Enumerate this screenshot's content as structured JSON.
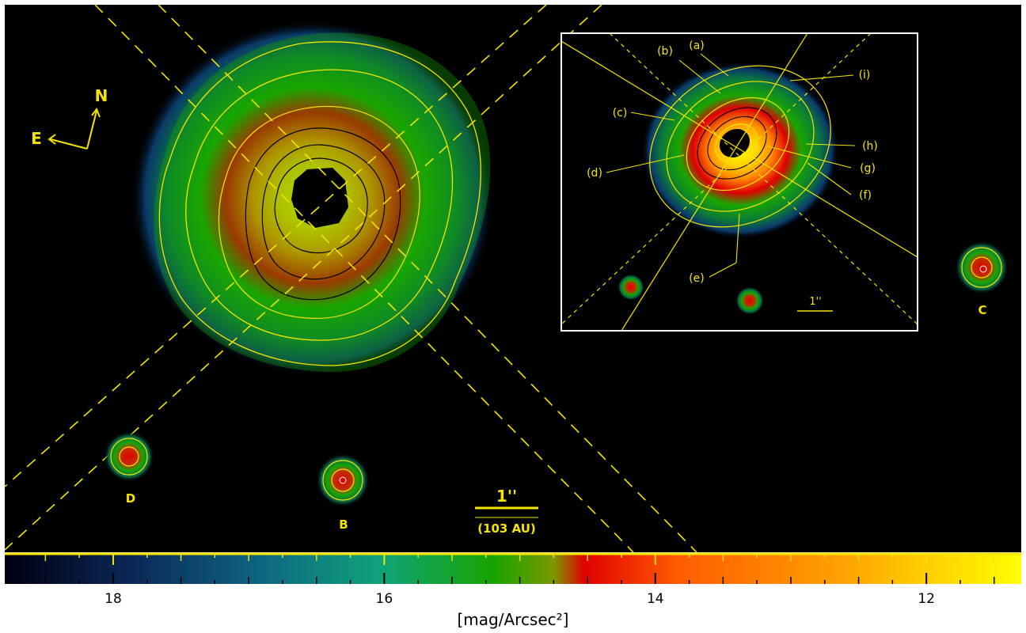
{
  "compass": {
    "north": "N",
    "east": "E"
  },
  "sources": [
    {
      "id": "B",
      "label": "B"
    },
    {
      "id": "C",
      "label": "C"
    },
    {
      "id": "D",
      "label": "D"
    }
  ],
  "scale_bar": {
    "label": "1''",
    "sublabel": "(103 AU)"
  },
  "inset": {
    "scale_label": "1''",
    "features": [
      "(a)",
      "(b)",
      "(c)",
      "(d)",
      "(e)",
      "(f)",
      "(g)",
      "(h)",
      "(i)"
    ]
  },
  "colorbar": {
    "unit_label": "[mag/Arcsec²]",
    "ticks": [
      "18",
      "16",
      "14",
      "12"
    ],
    "range": [
      18.8,
      11.3
    ],
    "colors": {
      "dark": "#000000",
      "blue": "#0d3c78",
      "teal": "#0fa37a",
      "green": "#16a800",
      "red": "#e00000",
      "orange": "#ff8c00",
      "yellow": "#ffff00"
    }
  },
  "colors": {
    "annotation": "#f5e400",
    "contour_dark": "#000000"
  }
}
